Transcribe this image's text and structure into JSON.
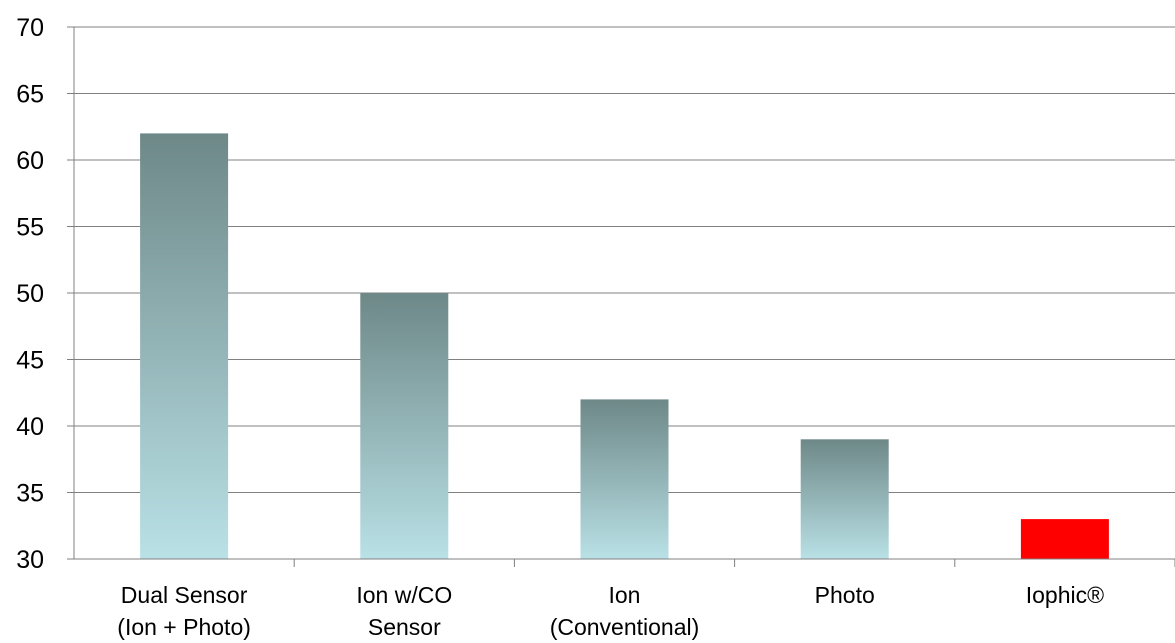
{
  "chart_data": {
    "type": "bar",
    "categories": [
      [
        "Dual Sensor",
        "(Ion + Photo)"
      ],
      [
        "Ion w/CO",
        "Sensor"
      ],
      [
        "Ion",
        "(Conventional)"
      ],
      [
        "Photo"
      ],
      [
        "Iophic®"
      ]
    ],
    "values": [
      62,
      50,
      42,
      39,
      33
    ],
    "ylim": [
      30,
      70
    ],
    "yticks": [
      30,
      35,
      40,
      45,
      50,
      55,
      60,
      65,
      70
    ],
    "grid": true,
    "legend": "none",
    "colors": {
      "gradient_top": "#6e8888",
      "gradient_bottom": "#b9e1e6",
      "highlight": "#ff0000",
      "grid": "#808080"
    },
    "highlight_index": 4
  }
}
